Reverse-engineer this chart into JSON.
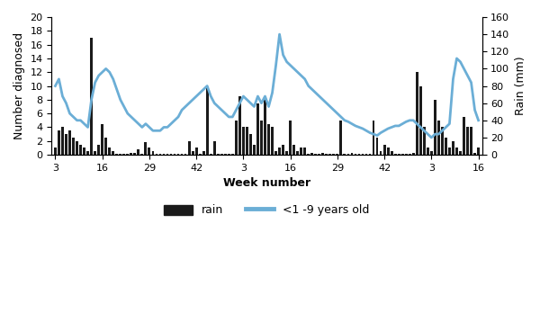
{
  "title": "",
  "xlabel": "Week number",
  "ylabel_left": "Number diagnosed",
  "ylabel_right": "Rain (mm)",
  "ylim_left": [
    0,
    20
  ],
  "ylim_right": [
    0,
    160
  ],
  "yticks_left": [
    0,
    2,
    4,
    6,
    8,
    10,
    12,
    14,
    16,
    18,
    20
  ],
  "yticks_right": [
    0,
    20,
    40,
    60,
    80,
    100,
    120,
    140,
    160
  ],
  "xtick_labels": [
    "3",
    "16",
    "29",
    "42",
    "3",
    "16",
    "29",
    "42",
    "3",
    "16"
  ],
  "bar_color": "#1a1a1a",
  "line_color": "#6baed6",
  "line_width": 2.0,
  "legend_rain": "rain",
  "legend_line": "<1 -9 years old",
  "background_color": "#ffffff",
  "rain_data_left": [
    1.0,
    3.5,
    4.0,
    3.0,
    3.5,
    2.5,
    2.0,
    1.5,
    1.0,
    0.5,
    17.0,
    0.5,
    1.5,
    4.5,
    2.5,
    1.0,
    0.5,
    0.1,
    0.1,
    0.1,
    0.1,
    0.3,
    0.3,
    0.8,
    0.1,
    1.8,
    1.0,
    0.5,
    0.1,
    0.1,
    0.1,
    0.1,
    0.1,
    0.1,
    0.1,
    0.1,
    0.1,
    2.0,
    0.5,
    1.0,
    0.1,
    0.5,
    9.7,
    0.1,
    2.0,
    0.1,
    0.1,
    0.1,
    0.1,
    0.1,
    5.0,
    8.5,
    4.0,
    4.0,
    3.0,
    1.5,
    7.5,
    5.0,
    8.0,
    4.5,
    4.0,
    0.5,
    1.0,
    1.5,
    0.5,
    5.0,
    1.5,
    0.5,
    1.0,
    1.0,
    0.1,
    0.3,
    0.2,
    0.1,
    0.3,
    0.1,
    0.2,
    0.1,
    0.1,
    5.0,
    0.1,
    0.1,
    0.3,
    0.2,
    0.1,
    0.1,
    0.1,
    0.1,
    5.0,
    2.5,
    0.5,
    1.5,
    1.0,
    0.5,
    0.1,
    0.1,
    0.1,
    0.1,
    0.1,
    0.3,
    12.0,
    10.0,
    4.0,
    1.0,
    0.5,
    8.0,
    5.0,
    4.0,
    2.5,
    1.0,
    2.0,
    1.0,
    0.5,
    5.5,
    4.0,
    4.0,
    0.3,
    1.0
  ],
  "malaria_data_left": [
    10.0,
    11.0,
    8.5,
    7.5,
    6.0,
    5.5,
    5.0,
    5.0,
    4.5,
    4.0,
    8.0,
    10.5,
    11.5,
    12.0,
    12.5,
    12.0,
    11.0,
    9.5,
    8.0,
    7.0,
    6.0,
    5.5,
    5.0,
    4.5,
    4.0,
    4.5,
    4.0,
    3.5,
    3.5,
    3.5,
    4.0,
    4.0,
    4.5,
    5.0,
    5.5,
    6.5,
    7.0,
    7.5,
    8.0,
    8.5,
    9.0,
    9.5,
    10.0,
    8.5,
    7.5,
    7.0,
    6.5,
    6.0,
    5.5,
    5.5,
    6.5,
    7.5,
    8.5,
    8.0,
    7.5,
    7.0,
    8.5,
    7.5,
    8.5,
    7.0,
    9.0,
    13.0,
    17.5,
    14.5,
    13.5,
    13.0,
    12.5,
    12.0,
    11.5,
    11.0,
    10.0,
    9.5,
    9.0,
    8.5,
    8.0,
    7.5,
    7.0,
    6.5,
    6.0,
    5.5,
    5.0,
    4.8,
    4.5,
    4.2,
    4.0,
    3.8,
    3.5,
    3.2,
    3.0,
    2.8,
    3.2,
    3.5,
    3.8,
    4.0,
    4.2,
    4.2,
    4.5,
    4.8,
    5.0,
    5.0,
    4.5,
    4.0,
    3.5,
    3.0,
    2.5,
    3.0,
    3.0,
    3.5,
    4.0,
    4.5,
    11.0,
    14.0,
    13.5,
    12.5,
    11.5,
    10.5,
    6.5,
    5.0
  ],
  "n_points": 118,
  "xtick_positions": [
    0,
    13,
    26,
    39,
    52,
    65,
    78,
    91,
    104,
    117
  ]
}
